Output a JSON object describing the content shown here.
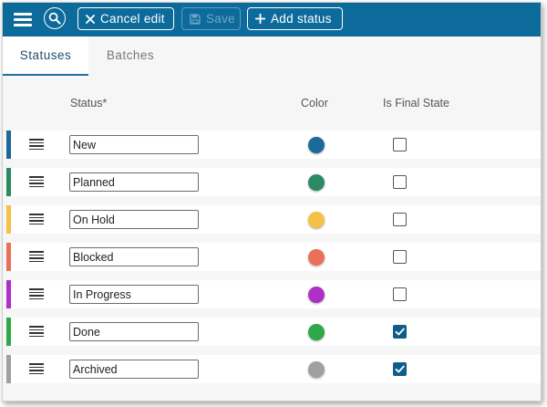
{
  "toolbar": {
    "cancel_label": "Cancel edit",
    "save_label": "Save",
    "add_label": "Add status",
    "bg_color": "#0d6b9b"
  },
  "tabs": [
    {
      "label": "Statuses",
      "active": true
    },
    {
      "label": "Batches",
      "active": false
    }
  ],
  "columns": {
    "status": "Status*",
    "color": "Color",
    "final": "Is Final State"
  },
  "rows": [
    {
      "name": "New",
      "color": "#1b6a99",
      "final": false
    },
    {
      "name": "Planned",
      "color": "#2c8a63",
      "final": false
    },
    {
      "name": "On Hold",
      "color": "#f5c045",
      "final": false
    },
    {
      "name": "Blocked",
      "color": "#ec7059",
      "final": false
    },
    {
      "name": "In Progress",
      "color": "#b02fc9",
      "final": false
    },
    {
      "name": "Done",
      "color": "#2fa84a",
      "final": true
    },
    {
      "name": "Archived",
      "color": "#a0a0a0",
      "final": true
    }
  ]
}
